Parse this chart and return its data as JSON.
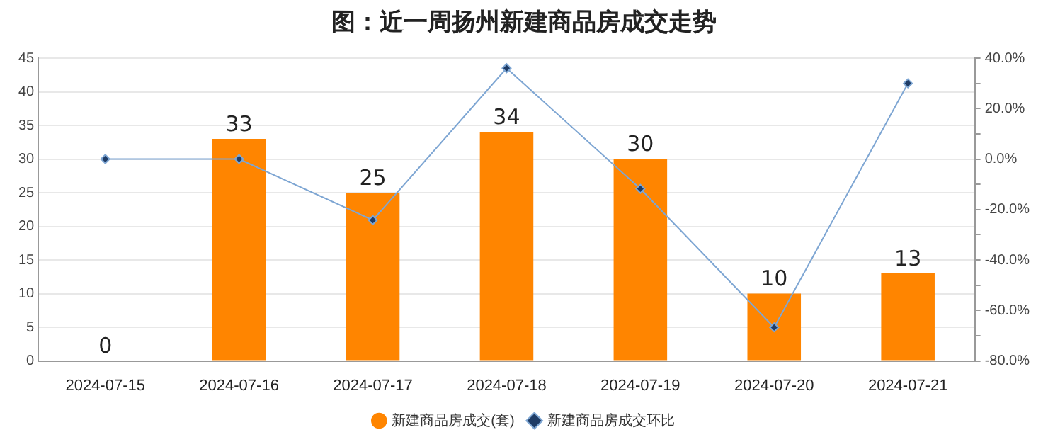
{
  "chart_data": {
    "type": "bar",
    "title": "图：近一周扬州新建商品房成交走势",
    "categories": [
      "2024-07-15",
      "2024-07-16",
      "2024-07-17",
      "2024-07-18",
      "2024-07-19",
      "2024-07-20",
      "2024-07-21"
    ],
    "series": [
      {
        "name": "新建商品房成交(套)",
        "color": "#ff8500",
        "values": [
          0,
          33,
          25,
          34,
          30,
          10,
          13
        ],
        "data_labels": true
      },
      {
        "name": "新建商品房成交环比",
        "type": "line",
        "axis": "y2",
        "color": "#7ea6d3",
        "marker": "diamond",
        "values": [
          0,
          0,
          -24.2,
          36,
          -11.8,
          -66.7,
          30
        ]
      }
    ],
    "ylim": [
      0,
      45
    ],
    "yticks": [
      0,
      5,
      10,
      15,
      20,
      25,
      30,
      35,
      40,
      45
    ],
    "y2lim": [
      -80,
      40
    ],
    "y2ticks": [
      {
        "value": -80,
        "label": "-80.0%"
      },
      {
        "value": -70,
        "label": null
      },
      {
        "value": -60,
        "label": "-60.0%"
      },
      {
        "value": -50,
        "label": null
      },
      {
        "value": -40,
        "label": "-40.0%"
      },
      {
        "value": -30,
        "label": null
      },
      {
        "value": -20,
        "label": "-20.0%"
      },
      {
        "value": -10,
        "label": null
      },
      {
        "value": 0,
        "label": "0.0%"
      },
      {
        "value": 10,
        "label": null
      },
      {
        "value": 20,
        "label": "20.0%"
      },
      {
        "value": 30,
        "label": null
      },
      {
        "value": 40,
        "label": "40.0%"
      }
    ],
    "grid": "y",
    "legend": "bottom"
  }
}
